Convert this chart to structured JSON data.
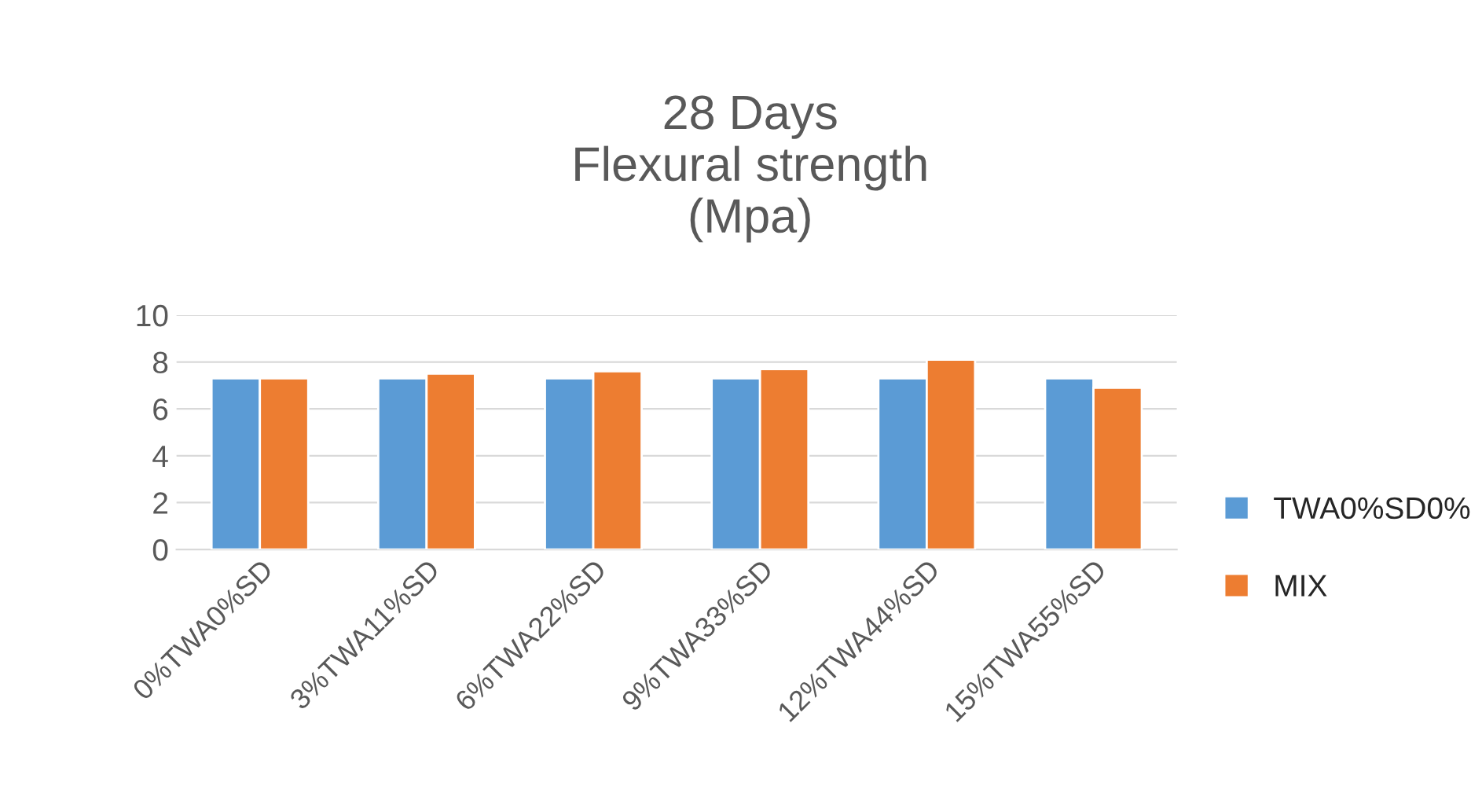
{
  "chart_data": {
    "type": "bar",
    "title": "28 Days\nFlexural strength\n(Mpa)",
    "categories": [
      "0%TWA0%SD",
      "3%TWA11%SD",
      "6%TWA22%SD",
      "9%TWA33%SD",
      "12%TWA44%SD",
      "15%TWA55%SD"
    ],
    "series": [
      {
        "name": "TWA0%SD0%",
        "color": "#5b9bd5",
        "values": [
          7.3,
          7.3,
          7.3,
          7.3,
          7.3,
          7.3
        ]
      },
      {
        "name": "MIX",
        "color": "#ed7d31",
        "values": [
          7.3,
          7.5,
          7.6,
          7.7,
          8.1,
          6.9
        ]
      }
    ],
    "ylim": [
      0,
      10
    ],
    "yticks": [
      0,
      2,
      4,
      6,
      8,
      10
    ],
    "grid": "y",
    "legend": "right"
  }
}
